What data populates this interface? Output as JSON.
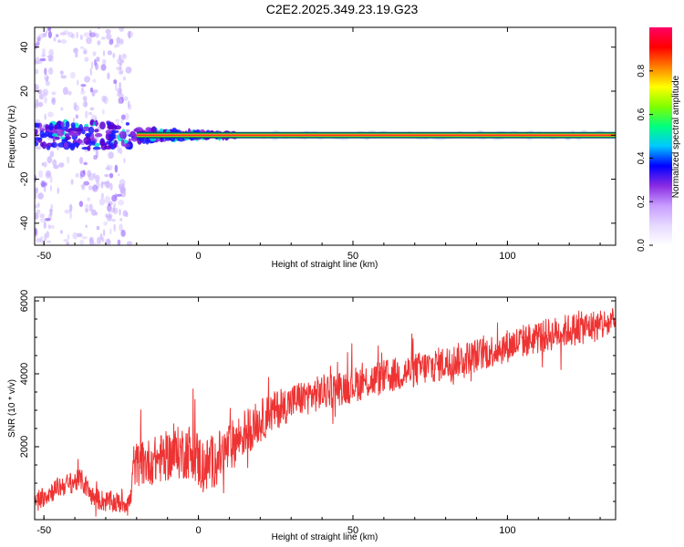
{
  "title": "C2E2.2025.349.23.19.G23",
  "chart_data": [
    {
      "type": "heatmap",
      "xlabel": "Height of straight line (km)",
      "ylabel": "Frequency (Hz)",
      "xlim": [
        -53,
        135
      ],
      "ylim": [
        -50,
        49
      ],
      "x_ticks": [
        -50,
        0,
        50,
        100
      ],
      "y_ticks": [
        -40,
        -20,
        0,
        20,
        40
      ],
      "colorbar": {
        "label": "Normalized spectral amplitude",
        "range": [
          0,
          1
        ],
        "ticks": [
          "0.0",
          "0.2",
          "0.4",
          "0.6",
          "0.8"
        ],
        "tick_values": [
          0.0,
          0.2,
          0.4,
          0.6,
          0.8
        ],
        "colors": [
          "#ffffff",
          "#e6d9ff",
          "#c89cff",
          "#8a2be2",
          "#0000ff",
          "#00c8ff",
          "#00ff7f",
          "#7fff00",
          "#ffff00",
          "#ff8000",
          "#ff0000",
          "#ff0066"
        ]
      },
      "features": [
        {
          "kind": "carrier",
          "freq_hz": 0,
          "x_from": -53,
          "x_to": 135,
          "amplitude": 0.95
        },
        {
          "kind": "noisy_band",
          "x_from": -53,
          "x_to": -22,
          "freq_halfwidth_hz": 6,
          "amplitude": 0.3
        },
        {
          "kind": "sparse_noise",
          "x_from": -53,
          "x_to": -22,
          "freq_range_hz": [
            -50,
            49
          ],
          "amplitude": 0.1
        }
      ]
    },
    {
      "type": "line",
      "xlabel": "Height of straight line (km)",
      "ylabel": "SNR (10 * v/v)",
      "xlim": [
        -53,
        135
      ],
      "ylim": [
        0,
        6100
      ],
      "x_ticks": [
        -50,
        0,
        50,
        100
      ],
      "y_ticks": [
        2000,
        4000,
        6000
      ],
      "color": "#ee3333",
      "trend": {
        "x": [
          -53,
          -45,
          -38,
          -34,
          -30,
          -25,
          -22,
          -21,
          -15,
          -8,
          -2,
          1,
          3,
          8,
          15,
          25,
          32,
          45,
          60,
          75,
          90,
          105,
          120,
          135
        ],
        "y": [
          500,
          900,
          1100,
          600,
          500,
          450,
          500,
          1500,
          1600,
          1800,
          1900,
          1500,
          1500,
          1800,
          2400,
          3000,
          3300,
          3600,
          3900,
          4200,
          4500,
          4900,
          5200,
          5400
        ]
      },
      "noise_amplitude": {
        "x": [
          -53,
          -22,
          -21,
          0,
          30,
          135
        ],
        "y": [
          300,
          300,
          600,
          800,
          500,
          450
        ]
      }
    }
  ]
}
